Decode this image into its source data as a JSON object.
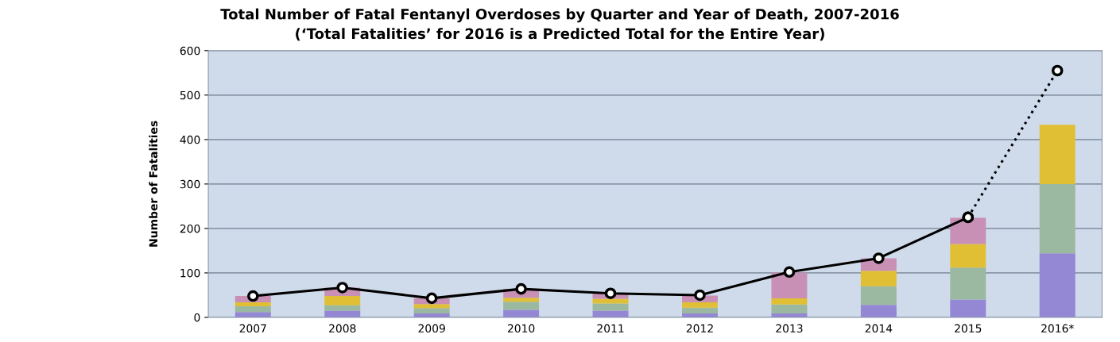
{
  "chart_data": {
    "type": "bar",
    "stacked": true,
    "title": "Total Number of Fatal Fentanyl Overdoses by Quarter and Year of Death, 2007-2016",
    "subtitle": "(‘Total Fatalities’ for 2016 is a Predicted Total for the Entire Year)",
    "ylabel": "Number of Fatalities",
    "categories": [
      "2007",
      "2008",
      "2009",
      "2010",
      "2011",
      "2012",
      "2013",
      "2014",
      "2015",
      "2016*"
    ],
    "series": [
      {
        "color": "#9487d4",
        "values": [
          12,
          15,
          9,
          17,
          15,
          9,
          9,
          28,
          40,
          144
        ]
      },
      {
        "color": "#9bb8a0",
        "values": [
          13,
          12,
          12,
          18,
          16,
          13,
          20,
          42,
          72,
          156
        ]
      },
      {
        "color": "#e0bf35",
        "values": [
          9,
          21,
          9,
          9,
          11,
          12,
          14,
          35,
          53,
          133
        ]
      },
      {
        "color": "#c890b5",
        "values": [
          14,
          19,
          13,
          20,
          12,
          15,
          58,
          28,
          59,
          null
        ]
      },
      {
        "type": "line",
        "color": "#000000",
        "marker": "circle",
        "line_style": "solid",
        "values": [
          48,
          67,
          43,
          64,
          54,
          50,
          102,
          133,
          225,
          null
        ]
      },
      {
        "type": "line",
        "color": "#000000",
        "marker": "circle",
        "line_style": "dotted",
        "values": [
          null,
          null,
          null,
          null,
          null,
          null,
          null,
          null,
          225,
          555
        ]
      }
    ],
    "ylim": [
      0,
      600
    ],
    "yticks": [
      0,
      100,
      200,
      300,
      400,
      500,
      600
    ],
    "grid": "y",
    "legend": false
  }
}
